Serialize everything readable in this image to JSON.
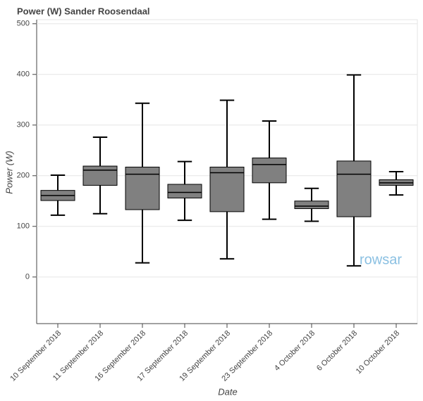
{
  "chart_data": {
    "type": "box",
    "title": "Power (W)  Sander Roosendaal",
    "x_label": "Date",
    "y_label": "Power (W)",
    "watermark": "rowsar",
    "categories": [
      "10 September 2018",
      "11 September 2018",
      "16 September 2018",
      "17 September 2018",
      "19 September 2018",
      "23 September 2018",
      "4 October 2018",
      "6 October 2018",
      "10 October 2018"
    ],
    "low": [
      122,
      125,
      28,
      112,
      36,
      114,
      110,
      22,
      162
    ],
    "q1": [
      151,
      181,
      133,
      156,
      129,
      186,
      135,
      119,
      181
    ],
    "median": [
      161,
      211,
      203,
      167,
      206,
      222,
      140,
      203,
      186
    ],
    "q3": [
      171,
      219,
      217,
      183,
      217,
      235,
      150,
      229,
      192
    ],
    "high": [
      201,
      276,
      343,
      228,
      349,
      308,
      175,
      399,
      208
    ],
    "color": "#808080",
    "ylim": [
      -92,
      508
    ],
    "yticks": [
      0,
      100,
      200,
      300,
      400,
      500
    ],
    "grid": true
  }
}
